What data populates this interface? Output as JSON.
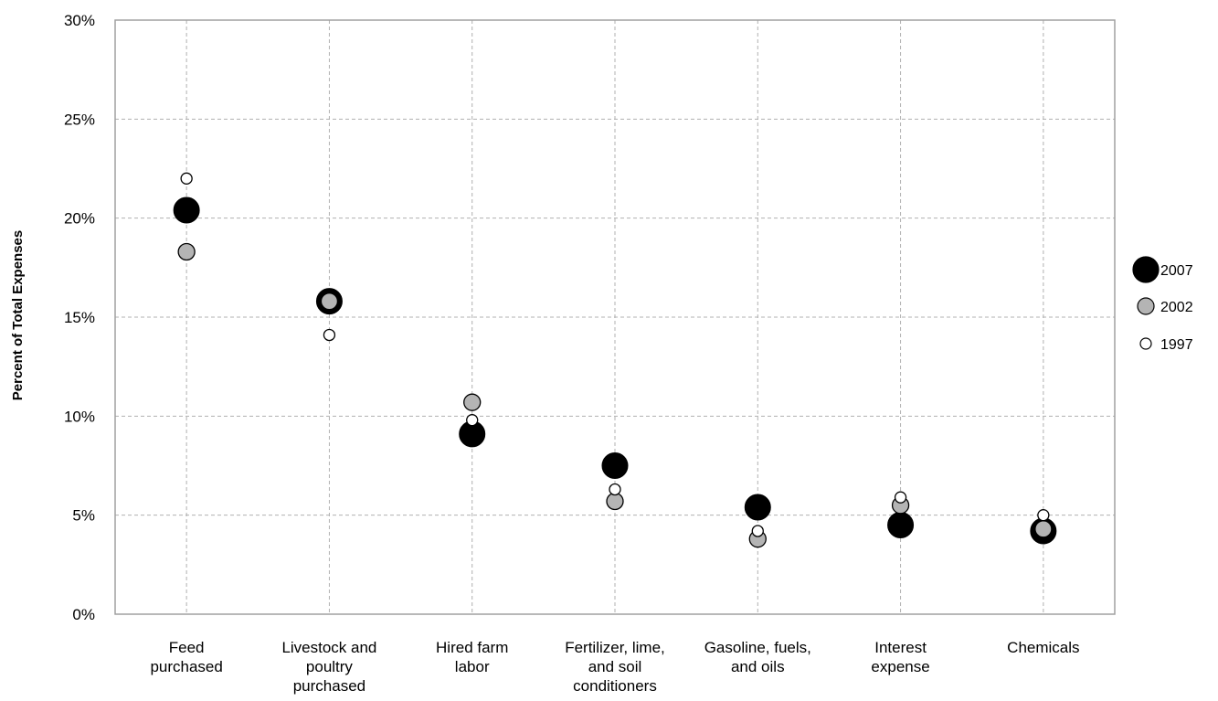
{
  "chart_data": {
    "type": "scatter",
    "ylabel": "Percent of Total Expenses",
    "xlabel": "",
    "ylim": [
      0,
      30
    ],
    "y_ticks": [
      "0%",
      "5%",
      "10%",
      "15%",
      "20%",
      "25%",
      "30%"
    ],
    "grid": true,
    "legend_position": "right",
    "categories": [
      [
        "Feed",
        "purchased"
      ],
      [
        "Livestock and",
        "poultry",
        "purchased"
      ],
      [
        "Hired farm",
        "labor"
      ],
      [
        "Fertilizer, lime,",
        "and soil",
        "conditioners"
      ],
      [
        "Gasoline, fuels,",
        "and oils"
      ],
      [
        "Interest",
        "expense"
      ],
      [
        "Chemicals"
      ]
    ],
    "series": [
      {
        "name": "2007",
        "values": [
          20.4,
          15.8,
          9.1,
          7.5,
          5.4,
          4.5,
          4.2
        ],
        "fill": "#000000"
      },
      {
        "name": "2002",
        "values": [
          18.3,
          15.8,
          10.7,
          5.7,
          3.8,
          5.5,
          4.3
        ],
        "fill": "#b4b4b4"
      },
      {
        "name": "1997",
        "values": [
          22.0,
          14.1,
          9.8,
          6.3,
          4.2,
          5.9,
          5.0
        ],
        "fill": "#ffffff"
      }
    ]
  }
}
